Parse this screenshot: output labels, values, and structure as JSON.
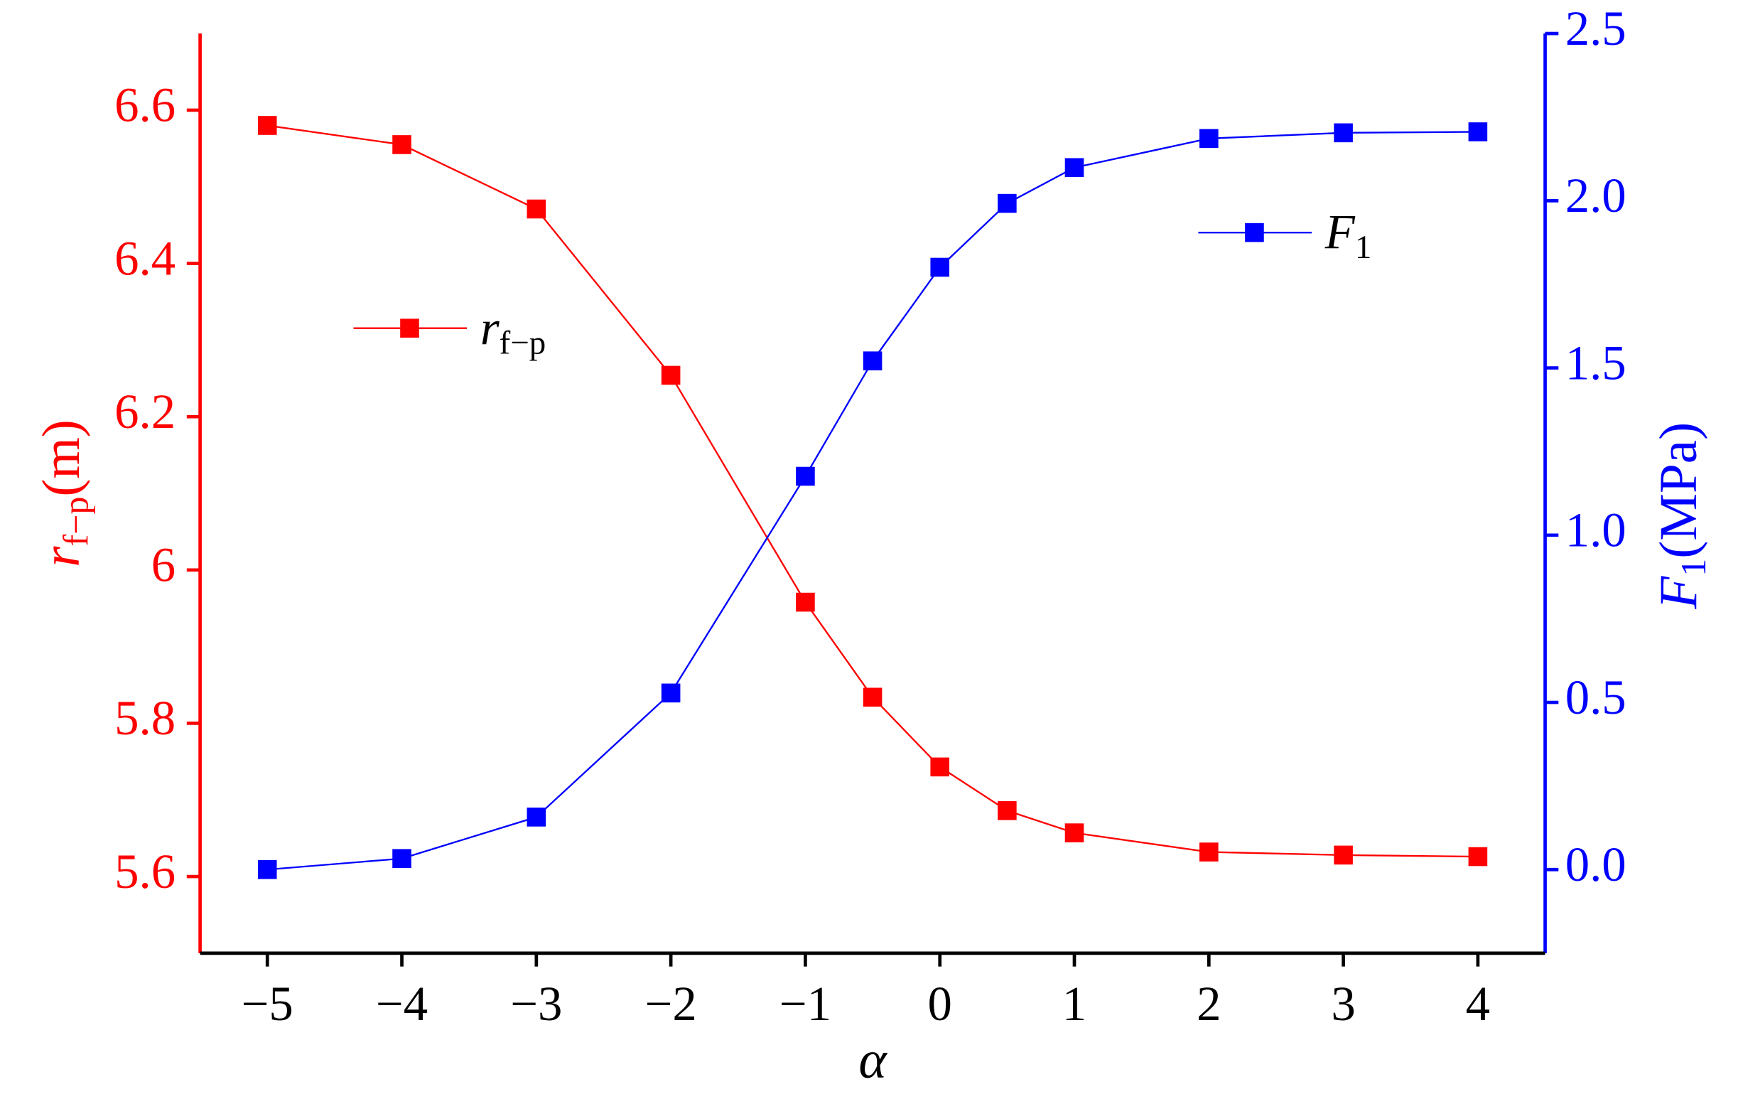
{
  "chart_data": {
    "type": "line",
    "x": [
      -5,
      -4,
      -3,
      -2,
      -1,
      -0.5,
      0,
      0.5,
      1,
      2,
      3,
      4
    ],
    "xlim": [
      -5.5,
      4.5
    ],
    "xticks": [
      {
        "value": -5,
        "label": "−5"
      },
      {
        "value": -4,
        "label": "−4"
      },
      {
        "value": -3,
        "label": "−3"
      },
      {
        "value": -2,
        "label": "−2"
      },
      {
        "value": -1,
        "label": "−1"
      },
      0,
      1,
      2,
      3,
      4
    ],
    "xlabel": "α",
    "ylabel": [
      "r",
      "f−p",
      "(m)"
    ],
    "y2label": [
      "F",
      "1",
      "(MPa)"
    ],
    "ylim": [
      5.5,
      6.7
    ],
    "yticks": [
      5.6,
      5.8,
      6.0,
      6.2,
      6.4,
      6.6
    ],
    "y2lim": [
      -0.25,
      2.5
    ],
    "y2ticks": [
      {
        "value": 0,
        "label": "0.0"
      },
      0.5,
      {
        "value": 1,
        "label": "1.0"
      },
      1.5,
      {
        "value": 2,
        "label": "2.0"
      },
      2.5
    ],
    "series": [
      {
        "name": [
          "r",
          "f−p"
        ],
        "color": "#ff0000",
        "axis": "y",
        "values": [
          6.58,
          6.555,
          6.471,
          6.254,
          5.958,
          5.834,
          5.743,
          5.686,
          5.657,
          5.632,
          5.628,
          5.626
        ]
      },
      {
        "name": [
          "F",
          "1"
        ],
        "color": "#0000ff",
        "axis": "y2",
        "values": [
          0.0,
          0.033,
          0.157,
          0.528,
          1.176,
          1.521,
          1.801,
          1.992,
          2.099,
          2.186,
          2.203,
          2.206
        ]
      }
    ]
  }
}
